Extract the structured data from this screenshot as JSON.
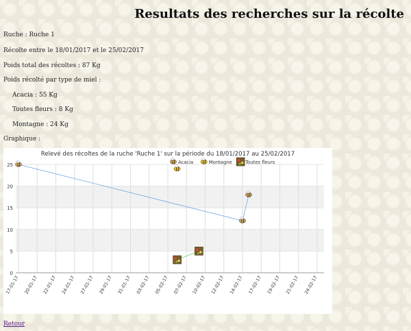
{
  "page": {
    "title": "Resultats des recherches sur la récolte",
    "hive_line": "Ruche : Ruche 1",
    "period_line": "Récolte entre le 18/01/2017 et le 25/02/2017",
    "total_line": "Poids total des récoltes : 87 Kg",
    "by_type_heading": "Poids récolté par type de miel :",
    "types": [
      {
        "label": "Acacia : 55 Kg"
      },
      {
        "label": "Toutes fleurs : 8 Kg"
      },
      {
        "label": "Montagne : 24 Kg"
      }
    ],
    "graph_heading": "Graphique :",
    "back_link": "Retour"
  },
  "chart_data": {
    "type": "line",
    "title": "Relevé des récoltes de la ruche 'Ruche 1' sur la période du 18/01/2017 au 25/02/2017",
    "xlabel": "",
    "ylabel": "",
    "ylim": [
      0,
      25
    ],
    "yticks": [
      0,
      5,
      10,
      15,
      20,
      25
    ],
    "x_tick_labels": [
      "17-01-17",
      "20-01-17",
      "22-01-17",
      "24-01-17",
      "27-01-17",
      "29-01-17",
      "31-01-17",
      "03-02-17",
      "05-02-17",
      "07-02-17",
      "10-02-17",
      "12-02-17",
      "14-02-17",
      "17-02-17",
      "19-02-17",
      "21-02-17",
      "24-02-17"
    ],
    "grid": true,
    "legend": "top",
    "series": [
      {
        "name": "Acacia",
        "color": "#6fa8e0",
        "icon": "bee-icon",
        "points": [
          {
            "x": "17-01-17",
            "y": 25
          },
          {
            "x": "14-02-17",
            "y": 12
          },
          {
            "x": "15-02-17",
            "y": 18
          }
        ]
      },
      {
        "name": "Montagne",
        "color": "#6fa8e0",
        "icon": "bee-yellow-icon",
        "points": [
          {
            "x": "06-02-17",
            "y": 24
          }
        ]
      },
      {
        "name": "Toutes fleurs",
        "color": "#6fcf6f",
        "icon": "flowers-icon",
        "points": [
          {
            "x": "06-02-17",
            "y": 3
          },
          {
            "x": "09-02-17",
            "y": 5
          }
        ]
      }
    ]
  }
}
